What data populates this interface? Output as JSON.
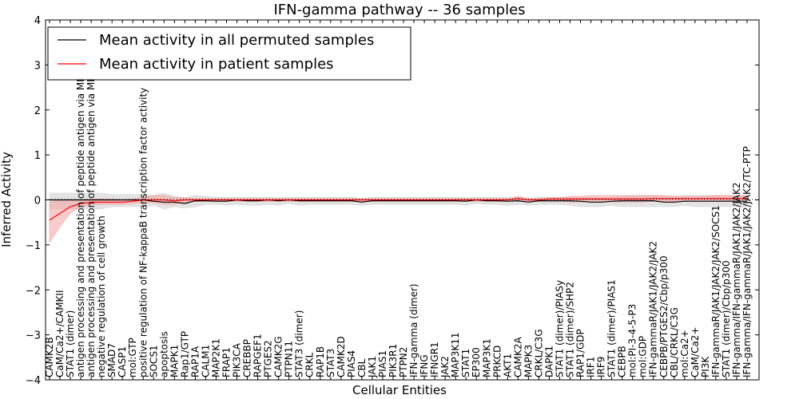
{
  "chart_data": {
    "type": "line",
    "title": "IFN-gamma pathway -- 36 samples",
    "xlabel": "Cellular Entities",
    "ylabel": "Inferred Activity",
    "ylim": [
      -4,
      4
    ],
    "yticks": [
      "4",
      "3",
      "2",
      "1",
      "0",
      "−1",
      "−2",
      "−3",
      "−4"
    ],
    "ytick_values": [
      4,
      3,
      2,
      1,
      0,
      -1,
      -2,
      -3,
      -4
    ],
    "legend_position": "top-left",
    "legend": [
      {
        "label": "Mean activity in all permuted samples",
        "color": "#000000"
      },
      {
        "label": "Mean activity in patient samples",
        "color": "#ff0000"
      }
    ],
    "categories": [
      "CAMK2B",
      "CaM/Ca2+/CAMKII",
      "STAT1 (dimer)",
      "antigen processing and presentation of peptide antigen via MHC class I",
      "antigen processing and presentation of peptide antigen via MHC class II",
      "negative regulation of cell growth",
      "SMAD7",
      "CASP1",
      "mol:GTP",
      "positive regulation of NF-kappaB transcription factor activity",
      "SOCS1",
      "apoptosis",
      "MAPK1",
      "Rap1/GTP",
      "RAP1A",
      "CALM1",
      "MAP2K1",
      "FRAP1",
      "PIK3CA",
      "CREBBP",
      "RAPGEF1",
      "PTGES2",
      "CAMK2G",
      "PTPN11",
      "STAT3 (dimer)",
      "CRKL",
      "RAP1B",
      "STAT3",
      "CAMK2D",
      "PIAS4",
      "CBL",
      "JAK1",
      "PIAS1",
      "PIK3R1",
      "PTPN2",
      "IFN-gamma (dimer)",
      "IFNG",
      "IFNGR1",
      "JAK2",
      "MAP3K11",
      "STAT1",
      "EP300",
      "MAP3K1",
      "PRKCD",
      "AKT1",
      "CAMK2A",
      "MAPK3",
      "CRKL/C3G",
      "DAPK1",
      "STAT1 (dimer)/PIASy",
      "STAT1 (dimer)/SHP2",
      "RAP1/GDP",
      "IRF1",
      "IRF9",
      "STAT1 (dimer)/PIAS1",
      "CEBPB",
      "mol:PI-3-4-5-P3",
      "mol:GDP",
      "IFN-gammaR/JAK1/JAK2/JAK2",
      "CEBPB/PTGES2/Cbp/p300",
      "CBL/CRKL/C3G",
      "mol:Ca2+",
      "CaM/Ca2+",
      "PI3K",
      "IFN-gammaR/JAK1/JAK2/JAK2/SOCS1",
      "STAT1 (dimer)/Cbp/p300",
      "IFN-gamma/IFN-gammaR/JAK1/JAK2/JAK2",
      "IFN-gamma/IFN-gammaR/JAK1/JAK2/JAK2/TC-PTP"
    ],
    "series": [
      {
        "name": "Mean activity in all permuted samples",
        "color": "#000000",
        "band_color": "#d0d0d0",
        "values": [
          0.0,
          0.0,
          0.0,
          0.0,
          0.0,
          0.0,
          0.0,
          0.0,
          0.0,
          0.0,
          -0.03,
          -0.05,
          -0.05,
          -0.08,
          -0.02,
          -0.02,
          -0.03,
          -0.03,
          0.0,
          -0.02,
          -0.02,
          0.0,
          -0.02,
          0.0,
          -0.02,
          -0.02,
          -0.02,
          -0.02,
          -0.02,
          -0.02,
          -0.05,
          -0.02,
          -0.02,
          -0.02,
          -0.02,
          -0.02,
          -0.02,
          -0.02,
          -0.02,
          -0.02,
          -0.03,
          0.0,
          -0.02,
          -0.02,
          -0.03,
          -0.02,
          -0.05,
          -0.02,
          -0.02,
          -0.02,
          -0.02,
          -0.03,
          -0.05,
          -0.05,
          -0.03,
          -0.02,
          -0.02,
          -0.02,
          -0.02,
          -0.05,
          -0.05,
          -0.03,
          -0.03,
          -0.03,
          -0.03,
          -0.03,
          -0.03,
          -0.03
        ],
        "lower": [
          -0.2,
          -0.2,
          -0.2,
          -0.2,
          -0.2,
          -0.2,
          -0.15,
          -0.15,
          -0.15,
          -0.15,
          -0.12,
          -0.2,
          -0.15,
          -0.18,
          -0.15,
          -0.1,
          -0.1,
          -0.12,
          -0.1,
          -0.12,
          -0.12,
          -0.1,
          -0.12,
          -0.08,
          -0.12,
          -0.1,
          -0.1,
          -0.1,
          -0.1,
          -0.1,
          -0.12,
          -0.1,
          -0.1,
          -0.1,
          -0.1,
          -0.1,
          -0.1,
          -0.1,
          -0.1,
          -0.1,
          -0.12,
          -0.08,
          -0.1,
          -0.1,
          -0.12,
          -0.1,
          -0.12,
          -0.1,
          -0.1,
          -0.1,
          -0.12,
          -0.15,
          -0.15,
          -0.15,
          -0.12,
          -0.15,
          -0.15,
          -0.15,
          -0.15,
          -0.15,
          -0.15,
          -0.12,
          -0.15,
          -0.15,
          -0.15,
          -0.15,
          -0.15,
          -0.15
        ],
        "upper": [
          0.15,
          0.15,
          0.15,
          0.15,
          0.15,
          0.15,
          0.12,
          0.12,
          0.12,
          0.12,
          0.1,
          0.15,
          0.08,
          0.05,
          0.1,
          0.08,
          0.06,
          0.06,
          0.06,
          0.06,
          0.06,
          0.06,
          0.05,
          0.06,
          0.06,
          0.06,
          0.06,
          0.06,
          0.06,
          0.06,
          0.03,
          0.06,
          0.06,
          0.06,
          0.06,
          0.06,
          0.06,
          0.06,
          0.06,
          0.06,
          0.05,
          0.06,
          0.06,
          0.06,
          0.05,
          0.06,
          0.04,
          0.06,
          0.06,
          0.06,
          0.06,
          0.06,
          0.05,
          0.05,
          0.06,
          0.08,
          0.1,
          0.1,
          0.1,
          0.08,
          0.08,
          0.1,
          0.1,
          0.1,
          0.1,
          0.1,
          0.1,
          0.1
        ]
      },
      {
        "name": "Mean activity in patient samples",
        "color": "#ff0000",
        "band_color": "#f4a0a0",
        "values": [
          -0.45,
          -0.3,
          -0.15,
          -0.08,
          -0.05,
          -0.05,
          -0.05,
          -0.05,
          -0.03,
          0.0,
          0.0,
          0.0,
          -0.02,
          0.0,
          0.0,
          0.0,
          0.0,
          0.0,
          0.0,
          0.0,
          0.0,
          0.0,
          0.0,
          0.0,
          0.0,
          0.0,
          0.0,
          0.0,
          0.0,
          0.0,
          0.0,
          0.0,
          0.0,
          0.0,
          0.0,
          0.0,
          0.0,
          0.0,
          0.0,
          0.0,
          0.0,
          0.0,
          0.0,
          0.0,
          0.0,
          0.03,
          0.0,
          0.0,
          0.02,
          0.02,
          0.02,
          0.02,
          0.02,
          0.02,
          0.02,
          0.02,
          0.02,
          0.02,
          0.03,
          0.03,
          0.03,
          0.03,
          0.03,
          0.03,
          0.03,
          0.03,
          0.03,
          0.03
        ],
        "lower": [
          -0.95,
          -0.6,
          -0.3,
          -0.15,
          -0.12,
          -0.1,
          -0.1,
          -0.1,
          -0.08,
          -0.06,
          -0.06,
          -0.1,
          -0.1,
          -0.05,
          -0.04,
          -0.03,
          -0.03,
          -0.03,
          -0.03,
          -0.03,
          -0.03,
          -0.03,
          -0.03,
          -0.03,
          -0.03,
          -0.03,
          -0.03,
          -0.03,
          -0.03,
          -0.03,
          -0.03,
          -0.03,
          -0.03,
          -0.03,
          -0.03,
          -0.03,
          -0.03,
          -0.03,
          -0.03,
          -0.03,
          -0.03,
          -0.03,
          -0.03,
          -0.03,
          -0.03,
          -0.02,
          -0.03,
          -0.03,
          -0.03,
          -0.03,
          -0.05,
          -0.05,
          -0.05,
          -0.05,
          -0.05,
          -0.05,
          -0.05,
          -0.05,
          -0.03,
          -0.03,
          -0.03,
          -0.03,
          -0.03,
          -0.03,
          -0.03,
          -0.03,
          -0.03,
          -0.03
        ],
        "upper": [
          -0.05,
          0.0,
          0.0,
          0.0,
          0.02,
          0.02,
          0.02,
          0.0,
          0.02,
          0.05,
          0.1,
          0.1,
          0.05,
          0.05,
          0.03,
          0.03,
          0.03,
          0.03,
          0.03,
          0.03,
          0.03,
          0.03,
          0.03,
          0.03,
          0.03,
          0.03,
          0.03,
          0.03,
          0.03,
          0.03,
          0.03,
          0.03,
          0.03,
          0.03,
          0.03,
          0.03,
          0.03,
          0.03,
          0.03,
          0.03,
          0.03,
          0.03,
          0.03,
          0.03,
          0.03,
          0.08,
          0.03,
          0.03,
          0.05,
          0.05,
          0.08,
          0.08,
          0.1,
          0.1,
          0.1,
          0.1,
          0.1,
          0.1,
          0.1,
          0.1,
          0.08,
          0.08,
          0.08,
          0.08,
          0.1,
          0.1,
          0.1,
          0.1
        ]
      }
    ]
  }
}
